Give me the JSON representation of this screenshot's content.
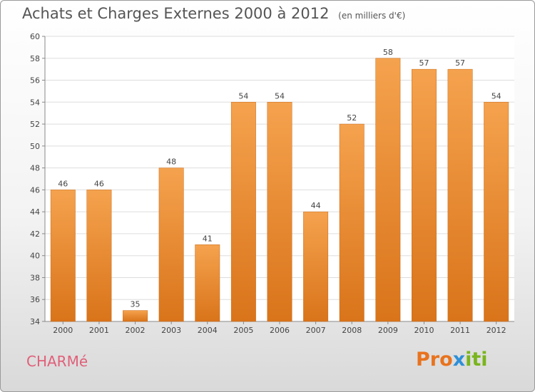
{
  "chart_data": {
    "type": "bar",
    "title": "Achats et Charges Externes 2000 à 2012",
    "subtitle": "(en milliers d'€)",
    "categories": [
      "2000",
      "2001",
      "2002",
      "2003",
      "2004",
      "2005",
      "2006",
      "2007",
      "2008",
      "2009",
      "2010",
      "2011",
      "2012"
    ],
    "values": [
      46,
      46,
      35,
      48,
      41,
      54,
      54,
      44,
      52,
      58,
      57,
      57,
      54
    ],
    "ylim": [
      34,
      60
    ],
    "yticks": [
      34,
      36,
      38,
      40,
      42,
      44,
      46,
      48,
      50,
      52,
      54,
      56,
      58,
      60
    ],
    "grid": true,
    "bar_color_top": "#f5a24e",
    "bar_color_bottom": "#d9741a"
  },
  "footer": {
    "commune": "CHARMé",
    "logo_text": "Proxiti"
  },
  "colors": {
    "logo_letters": [
      "#e8731e",
      "#e8731e",
      "#e8731e",
      "#2e8fd6",
      "#7ab51d",
      "#7ab51d",
      "#7ab51d"
    ]
  }
}
